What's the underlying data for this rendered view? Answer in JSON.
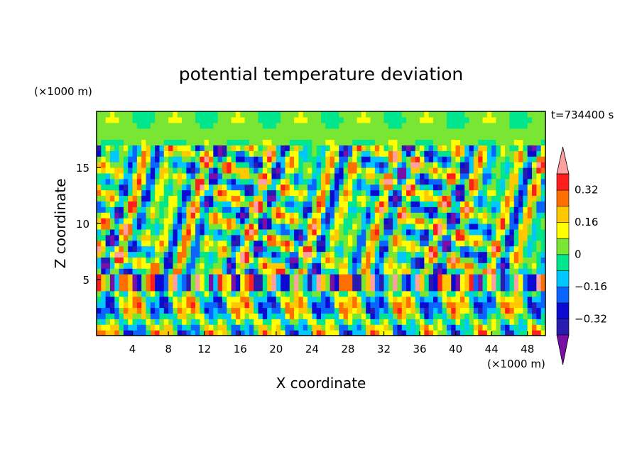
{
  "chart_data": {
    "type": "heatmap",
    "title": "potential temperature deviation",
    "time_label": "t=734400 s",
    "xlabel": "X coordinate",
    "ylabel": "Z coordinate",
    "x_unit": "(×1000 m)",
    "y_unit": "(×1000 m)",
    "x_range": [
      0,
      50
    ],
    "y_range": [
      0,
      20
    ],
    "x_ticks": [
      "4",
      "8",
      "12",
      "16",
      "20",
      "24",
      "28",
      "32",
      "36",
      "40",
      "44",
      "48"
    ],
    "y_ticks": [
      "5",
      "10",
      "15"
    ],
    "colorbar": {
      "ticks": [
        "0.32",
        "0.16",
        "0",
        "−0.16",
        "−0.32"
      ],
      "levels": [
        -0.4,
        -0.32,
        -0.24,
        -0.16,
        -0.08,
        0,
        0.08,
        0.16,
        0.24,
        0.32,
        0.4
      ],
      "colors": [
        "#7a0fa8",
        "#2a1bb0",
        "#0a0ad2",
        "#0a64ff",
        "#00c8ff",
        "#00e68c",
        "#78e632",
        "#ffff00",
        "#ffc800",
        "#ff6e00",
        "#ff1e1e",
        "#ffa0a0"
      ],
      "extend": "both"
    },
    "field_description_colors_note": null
  }
}
